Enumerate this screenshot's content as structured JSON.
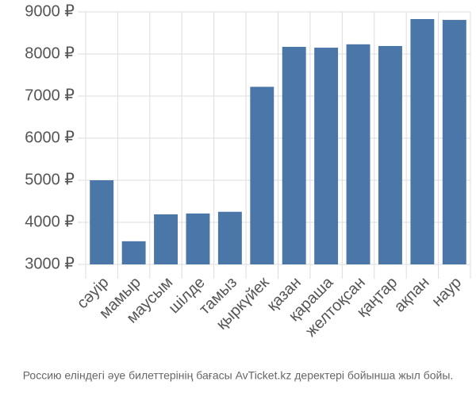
{
  "chart_data": {
    "type": "bar",
    "caption": "Россию еліндегі әуе билеттерінің бағасы AvTicket.kz деректері бойынша жыл бойы.",
    "categories": [
      "сәуір",
      "мамыр",
      "маусым",
      "шілде",
      "тамыз",
      "қыркүйек",
      "қазан",
      "қараша",
      "желтоқсан",
      "қаңтар",
      "ақпан",
      "наур"
    ],
    "values": [
      5000,
      3550,
      4190,
      4210,
      4250,
      7220,
      8170,
      8150,
      8230,
      8190,
      8830,
      8810
    ],
    "color": "#4a76a8",
    "ylim": [
      3000,
      9000
    ],
    "yticks": [
      {
        "value": 3000,
        "label": "3000 ₽"
      },
      {
        "value": 4000,
        "label": "4000 ₽"
      },
      {
        "value": 5000,
        "label": "5000 ₽"
      },
      {
        "value": 6000,
        "label": "6000 ₽"
      },
      {
        "value": 7000,
        "label": "7000 ₽"
      },
      {
        "value": 8000,
        "label": "8000 ₽"
      },
      {
        "value": 9000,
        "label": "9000 ₽"
      }
    ],
    "grid": true
  }
}
